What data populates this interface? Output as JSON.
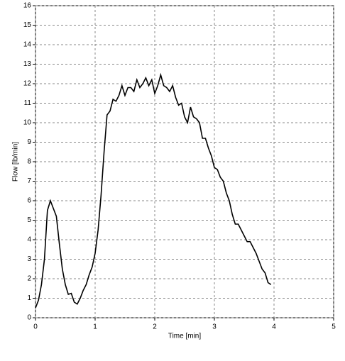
{
  "chart_data": {
    "type": "line",
    "xlabel": "Time [min]",
    "ylabel": "Flow [lb/min]",
    "x": [
      0,
      0.05,
      0.1,
      0.15,
      0.2,
      0.25,
      0.3,
      0.35,
      0.4,
      0.45,
      0.5,
      0.55,
      0.6,
      0.65,
      0.7,
      0.75,
      0.8,
      0.85,
      0.9,
      0.95,
      1.0,
      1.05,
      1.1,
      1.15,
      1.2,
      1.25,
      1.3,
      1.35,
      1.4,
      1.45,
      1.5,
      1.55,
      1.6,
      1.65,
      1.7,
      1.75,
      1.8,
      1.85,
      1.9,
      1.95,
      2.0,
      2.05,
      2.1,
      2.15,
      2.2,
      2.25,
      2.3,
      2.35,
      2.4,
      2.45,
      2.5,
      2.55,
      2.6,
      2.65,
      2.7,
      2.75,
      2.8,
      2.85,
      2.9,
      2.95,
      3.0,
      3.05,
      3.1,
      3.15,
      3.2,
      3.25,
      3.3,
      3.35,
      3.4,
      3.45,
      3.5,
      3.55,
      3.6,
      3.65,
      3.7,
      3.75,
      3.8,
      3.85,
      3.9,
      3.95
    ],
    "series": [
      {
        "color": "#000000",
        "values": [
          0.5,
          0.9,
          1.7,
          3,
          5.5,
          6,
          5.6,
          5.2,
          3.8,
          2.5,
          1.7,
          1.2,
          1.25,
          0.8,
          0.7,
          1.0,
          1.4,
          1.7,
          2.2,
          2.6,
          3.3,
          4.5,
          6.3,
          8.5,
          10.4,
          10.6,
          11.2,
          11.1,
          11.4,
          11.9,
          11.4,
          11.8,
          11.8,
          11.6,
          12.2,
          11.8,
          12.0,
          12.3,
          11.9,
          12.2,
          11.5,
          11.9,
          12.45,
          11.9,
          11.8,
          11.6,
          11.9,
          11.3,
          10.9,
          11.0,
          10.3,
          10.0,
          10.8,
          10.3,
          10.2,
          10.0,
          9.2,
          9.2,
          8.7,
          8.3,
          7.7,
          7.6,
          7.2,
          7.0,
          6.4,
          6.0,
          5.3,
          4.8,
          4.8,
          4.5,
          4.2,
          3.9,
          3.9,
          3.6,
          3.3,
          2.9,
          2.5,
          2.3,
          1.8,
          1.7
        ]
      }
    ],
    "xlim": [
      0,
      5
    ],
    "ylim": [
      0,
      16
    ],
    "xticks": [
      0,
      1,
      2,
      3,
      4,
      5
    ],
    "yticks": [
      0,
      1,
      2,
      3,
      4,
      5,
      6,
      7,
      8,
      9,
      10,
      11,
      12,
      13,
      14,
      15,
      16
    ],
    "grid": true
  }
}
